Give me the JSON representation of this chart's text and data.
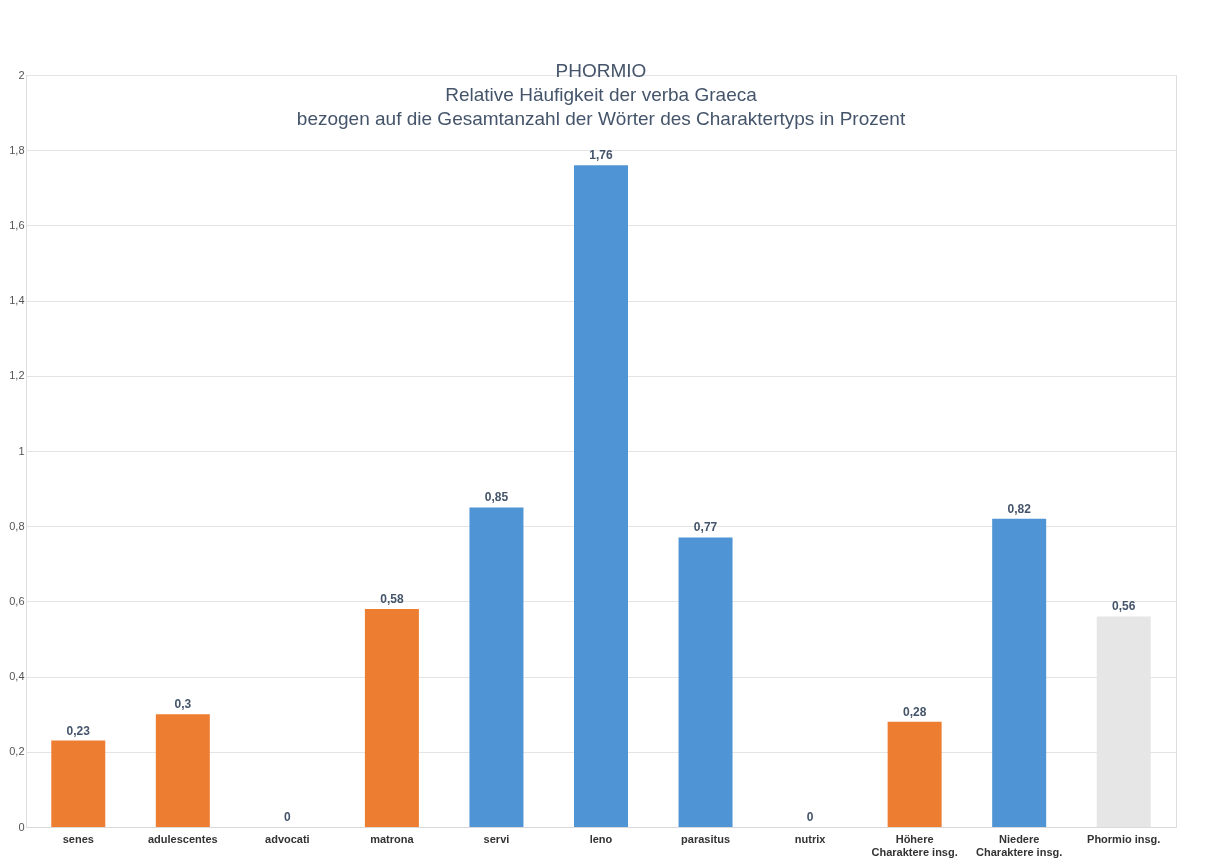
{
  "chart_data": {
    "type": "bar",
    "title": [
      "PHORMIO",
      "Relative Häufigkeit der verba Graeca",
      "bezogen auf die Gesamtanzahl der Wörter des Charaktertyps in Prozent"
    ],
    "categories": [
      "senes",
      "adulescentes",
      "advocati",
      "matrona",
      "servi",
      "leno",
      "parasitus",
      "nutrix",
      "Höhere Charaktere insg.",
      "Niedere Charaktere insg.",
      "Phormio insg."
    ],
    "values": [
      0.23,
      0.3,
      0,
      0.58,
      0.85,
      1.76,
      0.77,
      0,
      0.28,
      0.82,
      0.56
    ],
    "value_labels": [
      "0,23",
      "0,3",
      "0",
      "0,58",
      "0,85",
      "1,76",
      "0,77",
      "0",
      "0,28",
      "0,82",
      "0,56"
    ],
    "colors": [
      "#ed7d31",
      "#ed7d31",
      "#ed7d31",
      "#ed7d31",
      "#4f94d4",
      "#4f94d4",
      "#4f94d4",
      "#4f94d4",
      "#ed7d31",
      "#4f94d4",
      "#e7e6e6"
    ],
    "ylim": [
      0,
      2
    ],
    "yticks": [
      0,
      {
        "value": 0.2,
        "label": "0,2"
      },
      {
        "value": 0.4,
        "label": "0,4"
      },
      {
        "value": 0.6,
        "label": "0,6"
      },
      {
        "value": 0.8,
        "label": "0,8"
      },
      1,
      {
        "value": 1.2,
        "label": "1,2"
      },
      {
        "value": 1.4,
        "label": "1,4"
      },
      {
        "value": 1.6,
        "label": "1,6"
      },
      {
        "value": 1.8,
        "label": "1,8"
      },
      2
    ],
    "grid": "y"
  }
}
